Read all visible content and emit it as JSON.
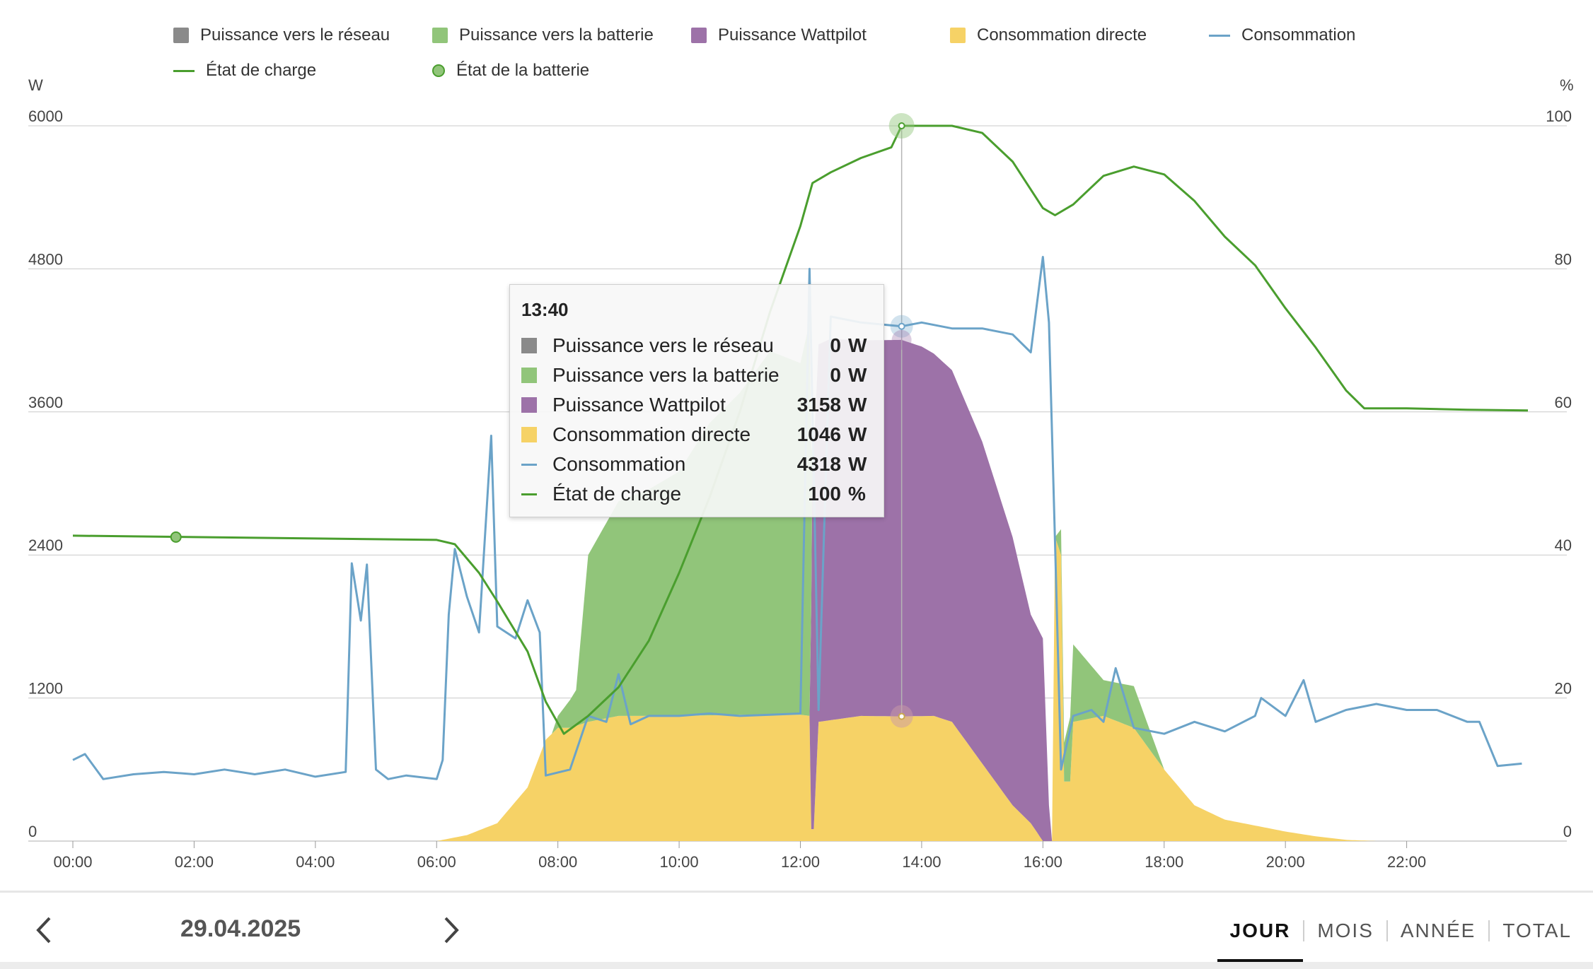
{
  "colors": {
    "grid": "#c9c9c9",
    "grey": "#8a8a8a",
    "green_area": "#91c57a",
    "purple": "#9d72a8",
    "yellow": "#f6d266",
    "blue_line": "#6ba3c8",
    "green_line": "#4a9e2e"
  },
  "legend": [
    {
      "label": "Puissance vers le réseau",
      "kind": "swatch",
      "color": "#8a8a8a"
    },
    {
      "label": "Puissance vers la batterie",
      "kind": "swatch",
      "color": "#91c57a"
    },
    {
      "label": "Puissance Wattpilot",
      "kind": "swatch",
      "color": "#9d72a8"
    },
    {
      "label": "Consommation directe",
      "kind": "swatch",
      "color": "#f6d266"
    },
    {
      "label": "Consommation",
      "kind": "line",
      "color": "#6ba3c8"
    },
    {
      "label": "État de charge",
      "kind": "line",
      "color": "#4a9e2e"
    },
    {
      "label": "État de la batterie",
      "kind": "dot",
      "color": "#91c57a"
    }
  ],
  "axes": {
    "left_unit": "W",
    "right_unit": "%"
  },
  "tooltip": {
    "time": "13:40",
    "rows": [
      {
        "label": "Puissance vers le réseau",
        "value": "0",
        "unit": "W",
        "kind": "swatch",
        "color": "#8a8a8a"
      },
      {
        "label": "Puissance vers la batterie",
        "value": "0",
        "unit": "W",
        "kind": "swatch",
        "color": "#91c57a"
      },
      {
        "label": "Puissance Wattpilot",
        "value": "3158",
        "unit": "W",
        "kind": "swatch",
        "color": "#9d72a8"
      },
      {
        "label": "Consommation directe",
        "value": "1046",
        "unit": "W",
        "kind": "swatch",
        "color": "#f6d266"
      },
      {
        "label": "Consommation",
        "value": "4318",
        "unit": "W",
        "kind": "line",
        "color": "#6ba3c8"
      },
      {
        "label": "État de charge",
        "value": "100",
        "unit": "%",
        "kind": "line",
        "color": "#4a9e2e"
      }
    ]
  },
  "nav": {
    "date": "29.04.2025",
    "tabs": [
      "JOUR",
      "MOIS",
      "ANNÉE",
      "TOTAL"
    ],
    "active_tab": "JOUR"
  },
  "chart_data": {
    "type": "area",
    "x_unit": "hours",
    "x_ticks": [
      "00:00",
      "02:00",
      "04:00",
      "06:00",
      "08:00",
      "10:00",
      "12:00",
      "14:00",
      "16:00",
      "18:00",
      "20:00",
      "22:00"
    ],
    "xlim": [
      0,
      24
    ],
    "y_left": {
      "unit": "W",
      "ylim": [
        0,
        6000
      ],
      "ticks": [
        0,
        1200,
        2400,
        3600,
        4800,
        6000
      ]
    },
    "y_right": {
      "unit": "%",
      "ylim": [
        0,
        100
      ],
      "ticks": [
        0,
        20,
        40,
        60,
        80,
        100
      ]
    },
    "grid": true,
    "legend_position": "top",
    "series": [
      {
        "name": "Consommation directe",
        "kind": "area",
        "axis": "left",
        "points": [
          [
            6.0,
            0
          ],
          [
            6.5,
            50
          ],
          [
            7.0,
            150
          ],
          [
            7.5,
            450
          ],
          [
            7.8,
            850
          ],
          [
            8.0,
            950
          ],
          [
            8.2,
            950
          ],
          [
            8.5,
            1000
          ],
          [
            9.0,
            1050
          ],
          [
            9.5,
            1050
          ],
          [
            10.0,
            1050
          ],
          [
            11.0,
            1060
          ],
          [
            12.0,
            1060
          ],
          [
            12.15,
            1050
          ],
          [
            12.18,
            100
          ],
          [
            12.22,
            100
          ],
          [
            12.3,
            1000
          ],
          [
            13.0,
            1050
          ],
          [
            13.67,
            1046
          ],
          [
            14.2,
            1050
          ],
          [
            14.5,
            1000
          ],
          [
            15.0,
            650
          ],
          [
            15.5,
            300
          ],
          [
            15.8,
            150
          ],
          [
            16.0,
            0
          ],
          [
            16.15,
            0
          ],
          [
            16.2,
            2550
          ],
          [
            16.3,
            2400
          ],
          [
            16.35,
            500
          ],
          [
            16.45,
            500
          ],
          [
            16.5,
            1000
          ],
          [
            17.0,
            1050
          ],
          [
            17.5,
            950
          ],
          [
            18.0,
            600
          ],
          [
            18.5,
            300
          ],
          [
            19.0,
            180
          ],
          [
            19.5,
            130
          ],
          [
            20.0,
            80
          ],
          [
            20.5,
            40
          ],
          [
            21.0,
            10
          ],
          [
            21.5,
            0
          ]
        ]
      },
      {
        "name": "Puissance Wattpilot",
        "kind": "area",
        "axis": "left",
        "points": [
          [
            12.15,
            0
          ],
          [
            12.2,
            3150
          ],
          [
            12.5,
            3200
          ],
          [
            13.0,
            3150
          ],
          [
            13.67,
            3158
          ],
          [
            14.0,
            3100
          ],
          [
            14.5,
            2950
          ],
          [
            15.0,
            2700
          ],
          [
            15.5,
            2250
          ],
          [
            15.8,
            1750
          ],
          [
            16.0,
            1700
          ],
          [
            16.1,
            300
          ],
          [
            16.15,
            0
          ]
        ]
      },
      {
        "name": "Puissance vers la batterie",
        "kind": "area",
        "axis": "left",
        "points": [
          [
            7.9,
            0
          ],
          [
            8.0,
            100
          ],
          [
            8.3,
            300
          ],
          [
            8.5,
            1400
          ],
          [
            9.0,
            1800
          ],
          [
            9.5,
            1900
          ],
          [
            10.0,
            2050
          ],
          [
            10.5,
            2450
          ],
          [
            11.0,
            2700
          ],
          [
            11.5,
            3050
          ],
          [
            12.0,
            2950
          ],
          [
            12.15,
            3300
          ],
          [
            12.2,
            0
          ],
          [
            13.67,
            0
          ],
          [
            16.2,
            0
          ],
          [
            16.5,
            650
          ],
          [
            17.0,
            300
          ],
          [
            17.5,
            350
          ],
          [
            18.0,
            0
          ]
        ]
      },
      {
        "name": "Puissance vers le réseau",
        "kind": "area",
        "axis": "left",
        "points": [
          [
            8.0,
            0
          ],
          [
            13.67,
            0
          ],
          [
            20.0,
            0
          ]
        ]
      },
      {
        "name": "Consommation",
        "kind": "line",
        "axis": "left",
        "points": [
          [
            0.0,
            680
          ],
          [
            0.2,
            730
          ],
          [
            0.5,
            520
          ],
          [
            1.0,
            560
          ],
          [
            1.5,
            580
          ],
          [
            2.0,
            560
          ],
          [
            2.5,
            600
          ],
          [
            3.0,
            560
          ],
          [
            3.5,
            600
          ],
          [
            4.0,
            540
          ],
          [
            4.5,
            580
          ],
          [
            4.6,
            2330
          ],
          [
            4.75,
            1850
          ],
          [
            4.85,
            2320
          ],
          [
            5.0,
            600
          ],
          [
            5.2,
            520
          ],
          [
            5.5,
            550
          ],
          [
            6.0,
            520
          ],
          [
            6.1,
            680
          ],
          [
            6.2,
            1900
          ],
          [
            6.3,
            2450
          ],
          [
            6.5,
            2050
          ],
          [
            6.7,
            1750
          ],
          [
            6.9,
            3400
          ],
          [
            7.0,
            1800
          ],
          [
            7.3,
            1700
          ],
          [
            7.5,
            2020
          ],
          [
            7.7,
            1750
          ],
          [
            7.8,
            550
          ],
          [
            8.2,
            600
          ],
          [
            8.5,
            1050
          ],
          [
            8.8,
            1000
          ],
          [
            9.0,
            1400
          ],
          [
            9.2,
            980
          ],
          [
            9.5,
            1050
          ],
          [
            10.0,
            1050
          ],
          [
            10.5,
            1070
          ],
          [
            11.0,
            1050
          ],
          [
            11.5,
            1060
          ],
          [
            12.0,
            1070
          ],
          [
            12.15,
            4800
          ],
          [
            12.3,
            1100
          ],
          [
            12.5,
            4400
          ],
          [
            13.0,
            4350
          ],
          [
            13.67,
            4318
          ],
          [
            14.0,
            4350
          ],
          [
            14.5,
            4300
          ],
          [
            15.0,
            4300
          ],
          [
            15.5,
            4250
          ],
          [
            15.8,
            4100
          ],
          [
            16.0,
            4900
          ],
          [
            16.1,
            4350
          ],
          [
            16.2,
            2500
          ],
          [
            16.3,
            600
          ],
          [
            16.5,
            1050
          ],
          [
            16.8,
            1100
          ],
          [
            17.0,
            1000
          ],
          [
            17.2,
            1450
          ],
          [
            17.5,
            950
          ],
          [
            18.0,
            900
          ],
          [
            18.5,
            1000
          ],
          [
            19.0,
            920
          ],
          [
            19.5,
            1050
          ],
          [
            19.6,
            1200
          ],
          [
            20.0,
            1050
          ],
          [
            20.3,
            1350
          ],
          [
            20.5,
            1000
          ],
          [
            21.0,
            1100
          ],
          [
            21.5,
            1150
          ],
          [
            22.0,
            1100
          ],
          [
            22.5,
            1100
          ],
          [
            23.0,
            1000
          ],
          [
            23.2,
            1000
          ],
          [
            23.5,
            630
          ],
          [
            23.9,
            650
          ]
        ]
      },
      {
        "name": "État de charge",
        "kind": "line",
        "axis": "right",
        "points": [
          [
            0.0,
            42.7
          ],
          [
            1.0,
            42.6
          ],
          [
            2.0,
            42.5
          ],
          [
            3.0,
            42.4
          ],
          [
            4.0,
            42.3
          ],
          [
            5.0,
            42.2
          ],
          [
            6.0,
            42.1
          ],
          [
            6.3,
            41.5
          ],
          [
            6.7,
            37.5
          ],
          [
            7.0,
            33.5
          ],
          [
            7.5,
            26.5
          ],
          [
            7.8,
            19.5
          ],
          [
            8.1,
            15.0
          ],
          [
            8.5,
            17.5
          ],
          [
            9.0,
            21.5
          ],
          [
            9.5,
            28.0
          ],
          [
            10.0,
            37.5
          ],
          [
            10.5,
            48.0
          ],
          [
            11.0,
            60.0
          ],
          [
            11.5,
            74.0
          ],
          [
            12.0,
            86.0
          ],
          [
            12.2,
            92.0
          ],
          [
            12.5,
            93.5
          ],
          [
            13.0,
            95.5
          ],
          [
            13.5,
            97.0
          ],
          [
            13.67,
            100.0
          ],
          [
            14.0,
            100.0
          ],
          [
            14.5,
            100.0
          ],
          [
            15.0,
            99.0
          ],
          [
            15.5,
            95.0
          ],
          [
            16.0,
            88.5
          ],
          [
            16.2,
            87.5
          ],
          [
            16.5,
            89.0
          ],
          [
            17.0,
            93.0
          ],
          [
            17.5,
            94.3
          ],
          [
            18.0,
            93.2
          ],
          [
            18.5,
            89.5
          ],
          [
            19.0,
            84.5
          ],
          [
            19.5,
            80.5
          ],
          [
            20.0,
            74.5
          ],
          [
            20.5,
            69.0
          ],
          [
            21.0,
            63.0
          ],
          [
            21.3,
            60.5
          ],
          [
            22.0,
            60.5
          ],
          [
            23.0,
            60.3
          ],
          [
            24.0,
            60.2
          ]
        ]
      },
      {
        "name": "État de la batterie",
        "kind": "marker",
        "axis": "right",
        "points": [
          [
            1.7,
            42.5
          ]
        ]
      }
    ]
  }
}
